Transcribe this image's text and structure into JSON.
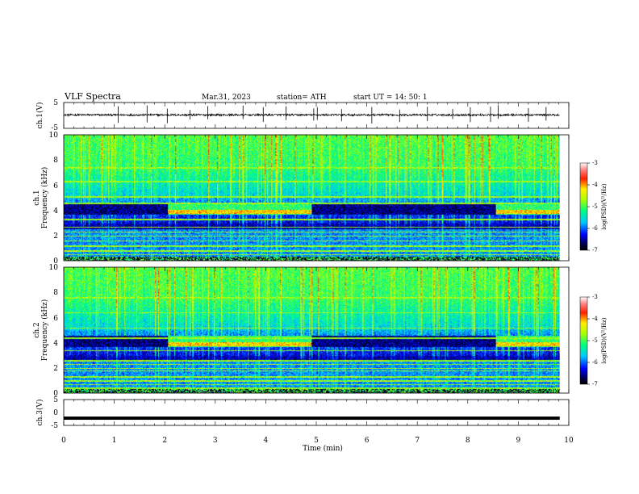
{
  "header": {
    "title": "VLF  Spectra",
    "date": "Mar.31, 2023",
    "station": "station= ATH",
    "start": "start  UT  =    14: 50: 1"
  },
  "chart_data": [
    {
      "type": "line",
      "name": "ch1-waveform",
      "ylabel": "ch.1(V)",
      "ylim": [
        -5,
        5
      ],
      "yticks": [
        "5",
        "-5"
      ],
      "x_range_min": [
        0,
        9.82
      ],
      "baseline_v": 0.2,
      "noise_v": 0.4,
      "spikes_at_min": [
        1.08,
        1.65,
        2.05,
        2.5,
        2.85,
        3.55,
        3.95,
        4.4,
        4.95,
        5.02,
        5.5,
        6.1,
        6.65,
        7.2,
        7.7,
        8.05,
        8.45,
        8.6,
        9.2,
        9.55
      ]
    },
    {
      "type": "heatmap",
      "name": "ch1-spectrogram",
      "ylabel": "ch.1\nFrequency  (kHz)",
      "ylim": [
        0,
        10
      ],
      "yticks": [
        "0",
        "2",
        "4",
        "6",
        "8",
        "10"
      ],
      "x_range_min": [
        0,
        9.82
      ],
      "colorbar": {
        "label": "log(PSD)(V²/Hz)",
        "range": [
          -7,
          -3
        ],
        "ticks": [
          "-3",
          "-4",
          "-5",
          "-6",
          "-7"
        ]
      },
      "transmitter_khz": [
        0.5,
        0.8,
        1.2,
        1.6,
        2.0,
        2.3,
        2.7,
        3.3,
        4.6,
        5.1,
        6.3,
        7.4
      ],
      "elevated_band_khz": [
        3.7,
        4.5
      ],
      "elevated_intervals_min": [
        [
          2.05,
          4.9
        ],
        [
          8.55,
          9.82
        ]
      ]
    },
    {
      "type": "heatmap",
      "name": "ch2-spectrogram",
      "ylabel": "ch.2\nFrequency  (kHz)",
      "ylim": [
        0,
        10
      ],
      "yticks": [
        "0",
        "2",
        "4",
        "6",
        "8",
        "10"
      ],
      "x_range_min": [
        0,
        9.82
      ],
      "colorbar": {
        "label": "log(PSD)(V²/Hz)",
        "range": [
          -7,
          -3
        ],
        "ticks": [
          "-3",
          "-4",
          "-5",
          "-6",
          "-7"
        ]
      },
      "transmitter_khz": [
        0.4,
        0.7,
        1.0,
        1.3,
        1.8,
        2.0,
        2.3,
        2.6,
        3.4,
        4.4,
        5.2,
        6.4,
        7.6
      ],
      "elevated_band_khz": [
        3.7,
        4.6
      ],
      "elevated_intervals_min": [
        [
          2.05,
          4.9
        ],
        [
          8.55,
          9.82
        ]
      ]
    },
    {
      "type": "line",
      "name": "ch3-waveform",
      "ylabel": "ch.3(V)",
      "ylim": [
        -5,
        5
      ],
      "yticks": [
        "5",
        "0",
        "-5"
      ],
      "xlabel": "Time  (min)",
      "xlim": [
        0,
        10
      ],
      "xticks": [
        "0",
        "1",
        "2",
        "3",
        "4",
        "5",
        "6",
        "7",
        "8",
        "9",
        "10"
      ],
      "x_range_min": [
        0,
        9.82
      ],
      "level_v": -2.2
    }
  ]
}
